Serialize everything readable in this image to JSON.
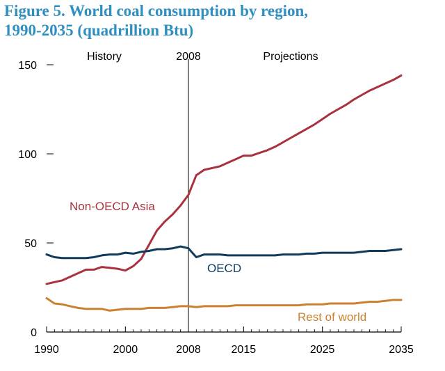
{
  "figure": {
    "title_line1": "Figure 5. World coal consumption by region,",
    "title_line2": "1990-2035 (quadrillion Btu)"
  },
  "chart_data": {
    "type": "line",
    "title": "Figure 5. World coal consumption by region, 1990-2035 (quadrillion Btu)",
    "xlabel": "",
    "ylabel": "",
    "xlim": [
      1990,
      2035
    ],
    "ylim": [
      0,
      150
    ],
    "x_ticks": [
      "1990",
      "2000",
      "2008",
      "2015",
      "2025",
      "2035"
    ],
    "x_tick_values": [
      1990,
      2000,
      2008,
      2015,
      2025,
      2035
    ],
    "y_ticks": [
      "0",
      "50",
      "100",
      "150"
    ],
    "y_tick_values": [
      0,
      50,
      100,
      150
    ],
    "grid": false,
    "divider": {
      "x": 2008,
      "label": "2008"
    },
    "region_labels": {
      "history": "History",
      "projections": "Projections"
    },
    "x": [
      1990,
      1991,
      1992,
      1993,
      1994,
      1995,
      1996,
      1997,
      1998,
      1999,
      2000,
      2001,
      2002,
      2003,
      2004,
      2005,
      2006,
      2007,
      2008,
      2009,
      2010,
      2011,
      2012,
      2013,
      2014,
      2015,
      2016,
      2017,
      2018,
      2019,
      2020,
      2021,
      2022,
      2023,
      2024,
      2025,
      2026,
      2027,
      2028,
      2029,
      2030,
      2031,
      2032,
      2033,
      2034,
      2035
    ],
    "series": [
      {
        "name": "Non-OECD Asia",
        "color": "#a8323e",
        "values": [
          27,
          28,
          29,
          31,
          33,
          35,
          35,
          36.5,
          36,
          35.5,
          34.5,
          37,
          41,
          49,
          57,
          62,
          66,
          71,
          77,
          88,
          91,
          92,
          93,
          95,
          97,
          99,
          99,
          100.5,
          102,
          104,
          106.5,
          109,
          111.5,
          114,
          116.5,
          119.5,
          122.5,
          125,
          127.5,
          130.5,
          133,
          135.5,
          137.5,
          139.5,
          141.5,
          144
        ]
      },
      {
        "name": "OECD",
        "color": "#0f3c5c",
        "values": [
          43.5,
          42,
          41.5,
          41.5,
          41.5,
          41.5,
          42,
          43,
          43.5,
          43.5,
          44.5,
          44,
          45,
          45.5,
          46.5,
          46.5,
          47,
          48,
          47,
          42,
          43.5,
          43.5,
          43.5,
          43,
          43,
          43,
          43,
          43,
          43,
          43,
          43.5,
          43.5,
          43.5,
          44,
          44,
          44.5,
          44.5,
          44.5,
          44.5,
          44.5,
          45,
          45.5,
          45.5,
          45.5,
          46,
          46.5
        ]
      },
      {
        "name": "Rest of world",
        "color": "#c9822f",
        "values": [
          19,
          16,
          15.5,
          14.5,
          13.5,
          13,
          13,
          13,
          12,
          12.5,
          13,
          13,
          13,
          13.5,
          13.5,
          13.5,
          14,
          14.5,
          14.5,
          14,
          14.5,
          14.5,
          14.5,
          14.5,
          15,
          15,
          15,
          15,
          15,
          15,
          15,
          15,
          15,
          15.5,
          15.5,
          15.5,
          16,
          16,
          16,
          16,
          16.5,
          17,
          17,
          17.5,
          18,
          18
        ]
      }
    ]
  }
}
